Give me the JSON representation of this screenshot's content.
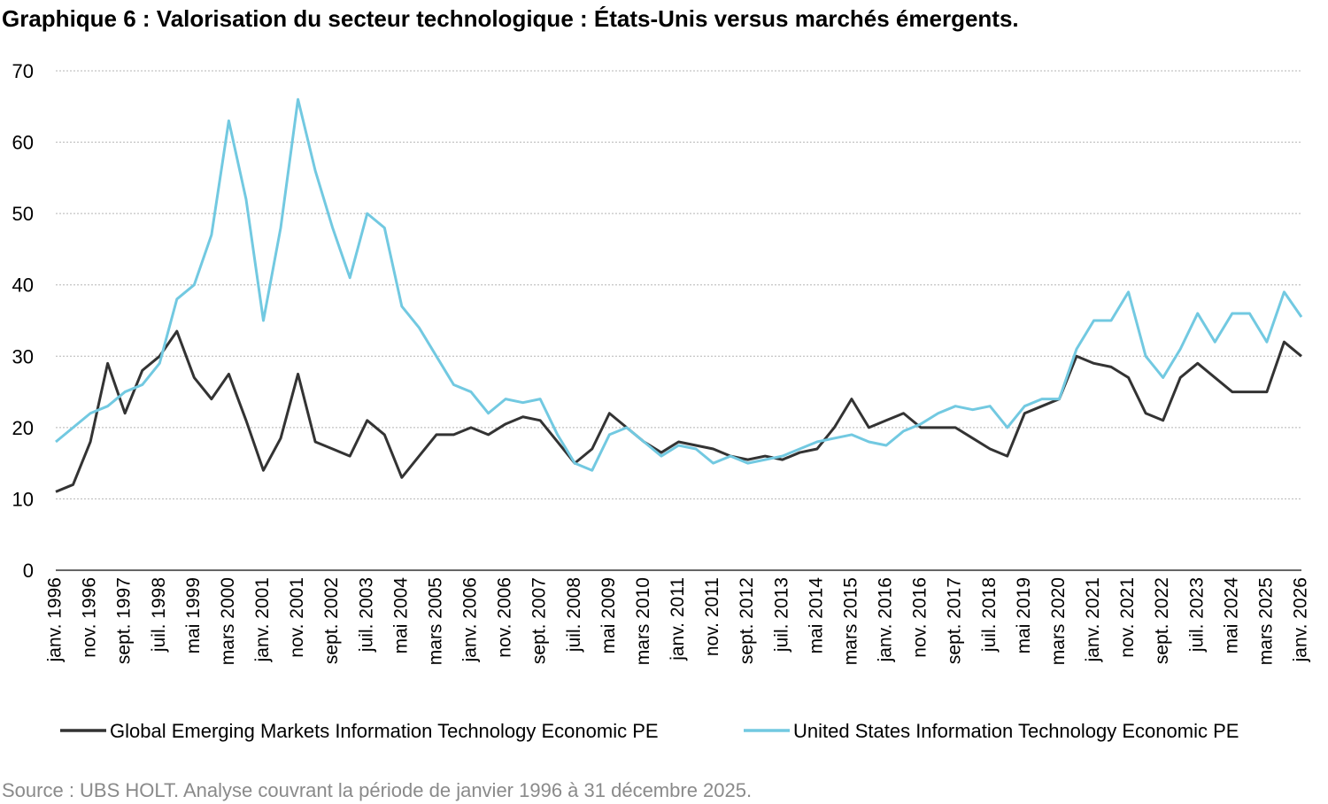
{
  "chart_data": {
    "type": "line",
    "title": "Graphique 6 : Valorisation du secteur technologique : États-Unis versus marchés émergents.",
    "source": "Source : UBS HOLT. Analyse couvrant la période de janvier 1996 à 31 décembre 2025.",
    "categories": [
      "janv. 1996",
      null,
      "nov. 1996",
      null,
      "sept. 1997",
      null,
      "juil. 1998",
      null,
      "mai 1999",
      null,
      "mars 2000",
      null,
      "janv. 2001",
      null,
      "nov. 2001",
      null,
      "sept. 2002",
      null,
      "juil. 2003",
      null,
      "mai 2004",
      null,
      "mars 2005",
      null,
      "janv. 2006",
      null,
      "nov. 2006",
      null,
      "sept. 2007",
      null,
      "juil. 2008",
      null,
      "mai 2009",
      null,
      "mars 2010",
      null,
      "janv. 2011",
      null,
      "nov. 2011",
      null,
      "sept. 2012",
      null,
      "juil. 2013",
      null,
      "mai 2014",
      null,
      "mars 2015",
      null,
      "janv. 2016",
      null,
      "nov. 2016",
      null,
      "sept. 2017",
      null,
      "juil. 2018",
      null,
      "mai 2019",
      null,
      "mars 2020",
      null,
      "janv. 2021",
      null,
      "nov. 2021",
      null,
      "sept. 2022",
      null,
      "juil. 2023",
      null,
      "mai 2024",
      null,
      "mars 2025",
      null,
      "janv. 2026"
    ],
    "series": [
      {
        "name": "Global Emerging Markets Information Technology Economic PE",
        "color": "#333333",
        "values": [
          11,
          12,
          18,
          29,
          22,
          28,
          30,
          33.5,
          27,
          24,
          27.5,
          21,
          14,
          18.5,
          27.5,
          18,
          17,
          16,
          21,
          19,
          13,
          16,
          19,
          19,
          20,
          19,
          20.5,
          21.5,
          21,
          18,
          15,
          17,
          22,
          20,
          18,
          16.5,
          18,
          17.5,
          17,
          16,
          15.5,
          16,
          15.5,
          16.5,
          17,
          20,
          24,
          20,
          21,
          22,
          20,
          20,
          20,
          18.5,
          17,
          16,
          22,
          23,
          24,
          30,
          29,
          28.5,
          27,
          22,
          21,
          27,
          29,
          27,
          25,
          25,
          25,
          32,
          30
        ]
      },
      {
        "name": "United States Information Technology Economic PE",
        "color": "#72c9e1",
        "values": [
          18,
          20,
          22,
          23,
          25,
          26,
          29,
          38,
          40,
          47,
          63,
          52,
          35,
          48,
          66,
          56,
          48,
          41,
          50,
          48,
          37,
          34,
          30,
          26,
          25,
          22,
          24,
          23.5,
          24,
          19,
          15,
          14,
          19,
          20,
          18,
          16,
          17.5,
          17,
          15,
          16,
          15,
          15.5,
          16,
          17,
          18,
          18.5,
          19,
          18,
          17.5,
          19.5,
          20.5,
          22,
          23,
          22.5,
          23,
          20,
          23,
          24,
          24,
          31,
          35,
          35,
          39,
          30,
          27,
          31,
          36,
          32,
          36,
          36,
          32,
          39,
          35.5
        ]
      }
    ],
    "ylim": [
      0,
      70
    ],
    "yticks": [
      0,
      10,
      20,
      30,
      40,
      50,
      60,
      70
    ],
    "grid": true,
    "legend": "bottom"
  }
}
